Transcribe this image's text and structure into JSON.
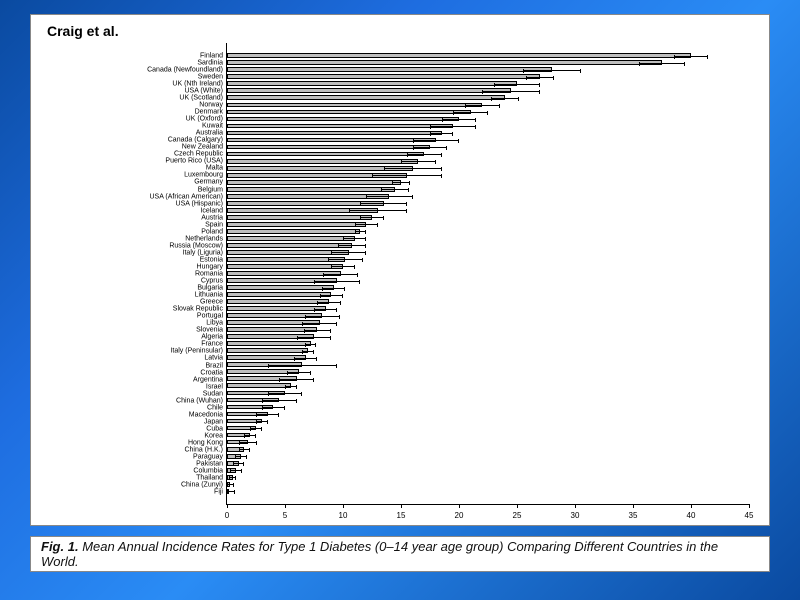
{
  "source_label": "Craig et al.",
  "caption": {
    "fig_label": "Fig. 1.",
    "text": "Mean Annual Incidence Rates for Type 1 Diabetes (0–14 year age group) Comparing Different Countries in the World."
  },
  "chart": {
    "type": "bar",
    "orientation": "horizontal",
    "xlim": [
      0,
      45
    ],
    "xtick_step": 5,
    "bar_color": "#bfbfbf",
    "bar_border": "#000000",
    "background_color": "#ffffff",
    "axis_color": "#000000",
    "label_fontsize": 7,
    "tick_fontsize": 8,
    "data": [
      {
        "label": "Finland",
        "value": 40.0,
        "err": 1.5
      },
      {
        "label": "Sardinia",
        "value": 37.5,
        "err": 2.0
      },
      {
        "label": "Canada (Newfoundland)",
        "value": 28.0,
        "err": 2.5
      },
      {
        "label": "Sweden",
        "value": 27.0,
        "err": 1.2
      },
      {
        "label": "UK (Nth Ireland)",
        "value": 25.0,
        "err": 2.0
      },
      {
        "label": "USA (White)",
        "value": 24.5,
        "err": 2.5
      },
      {
        "label": "UK (Scotland)",
        "value": 24.0,
        "err": 1.2
      },
      {
        "label": "Norway",
        "value": 22.0,
        "err": 1.5
      },
      {
        "label": "Denmark",
        "value": 21.0,
        "err": 1.5
      },
      {
        "label": "UK (Oxford)",
        "value": 20.0,
        "err": 1.5
      },
      {
        "label": "Kuwait",
        "value": 19.5,
        "err": 2.0
      },
      {
        "label": "Australia",
        "value": 18.5,
        "err": 1.0
      },
      {
        "label": "Canada (Calgary)",
        "value": 18.0,
        "err": 2.0
      },
      {
        "label": "New Zealand",
        "value": 17.5,
        "err": 1.5
      },
      {
        "label": "Czech Republic",
        "value": 17.0,
        "err": 1.5
      },
      {
        "label": "Puerto Rico (USA)",
        "value": 16.5,
        "err": 1.5
      },
      {
        "label": "Malta",
        "value": 16.0,
        "err": 2.5
      },
      {
        "label": "Luxembourg",
        "value": 15.5,
        "err": 3.0
      },
      {
        "label": "Germany",
        "value": 15.0,
        "err": 0.8
      },
      {
        "label": "Belgium",
        "value": 14.5,
        "err": 1.2
      },
      {
        "label": "USA (African American)",
        "value": 14.0,
        "err": 2.0
      },
      {
        "label": "USA (Hispanic)",
        "value": 13.5,
        "err": 2.0
      },
      {
        "label": "Iceland",
        "value": 13.0,
        "err": 2.5
      },
      {
        "label": "Austria",
        "value": 12.5,
        "err": 1.0
      },
      {
        "label": "Spain",
        "value": 12.0,
        "err": 1.0
      },
      {
        "label": "Poland",
        "value": 11.5,
        "err": 0.5
      },
      {
        "label": "Netherlands",
        "value": 11.0,
        "err": 1.0
      },
      {
        "label": "Russia (Moscow)",
        "value": 10.8,
        "err": 1.2
      },
      {
        "label": "Italy (Liguria)",
        "value": 10.5,
        "err": 1.5
      },
      {
        "label": "Estonia",
        "value": 10.2,
        "err": 1.5
      },
      {
        "label": "Hungary",
        "value": 10.0,
        "err": 1.0
      },
      {
        "label": "Romania",
        "value": 9.8,
        "err": 1.5
      },
      {
        "label": "Cyprus",
        "value": 9.5,
        "err": 2.0
      },
      {
        "label": "Bulgaria",
        "value": 9.2,
        "err": 1.0
      },
      {
        "label": "Lithuania",
        "value": 9.0,
        "err": 1.0
      },
      {
        "label": "Greece",
        "value": 8.8,
        "err": 1.0
      },
      {
        "label": "Slovak Republic",
        "value": 8.5,
        "err": 1.0
      },
      {
        "label": "Portugal",
        "value": 8.2,
        "err": 1.5
      },
      {
        "label": "Libya",
        "value": 8.0,
        "err": 1.5
      },
      {
        "label": "Slovenia",
        "value": 7.8,
        "err": 1.2
      },
      {
        "label": "Algeria",
        "value": 7.5,
        "err": 1.5
      },
      {
        "label": "France",
        "value": 7.2,
        "err": 0.5
      },
      {
        "label": "Italy (Peninsular)",
        "value": 7.0,
        "err": 0.5
      },
      {
        "label": "Latvia",
        "value": 6.8,
        "err": 1.0
      },
      {
        "label": "Brazil",
        "value": 6.5,
        "err": 3.0
      },
      {
        "label": "Croatia",
        "value": 6.2,
        "err": 1.0
      },
      {
        "label": "Argentina",
        "value": 6.0,
        "err": 1.5
      },
      {
        "label": "Israel",
        "value": 5.5,
        "err": 0.5
      },
      {
        "label": "Sudan",
        "value": 5.0,
        "err": 1.5
      },
      {
        "label": "China (Wuhan)",
        "value": 4.5,
        "err": 1.5
      },
      {
        "label": "Chile",
        "value": 4.0,
        "err": 1.0
      },
      {
        "label": "Macedonia",
        "value": 3.5,
        "err": 1.0
      },
      {
        "label": "Japan",
        "value": 3.0,
        "err": 0.5
      },
      {
        "label": "Cuba",
        "value": 2.5,
        "err": 0.5
      },
      {
        "label": "Korea",
        "value": 2.0,
        "err": 0.5
      },
      {
        "label": "Hong Kong",
        "value": 1.8,
        "err": 0.8
      },
      {
        "label": "China (H.K.)",
        "value": 1.5,
        "err": 0.5
      },
      {
        "label": "Paraguay",
        "value": 1.2,
        "err": 0.5
      },
      {
        "label": "Pakistan",
        "value": 1.0,
        "err": 0.5
      },
      {
        "label": "Columbia",
        "value": 0.8,
        "err": 0.5
      },
      {
        "label": "Thailand",
        "value": 0.5,
        "err": 0.3
      },
      {
        "label": "China (Zunyi)",
        "value": 0.3,
        "err": 0.3
      },
      {
        "label": "Fiji",
        "value": 0.2,
        "err": 0.5
      }
    ]
  }
}
